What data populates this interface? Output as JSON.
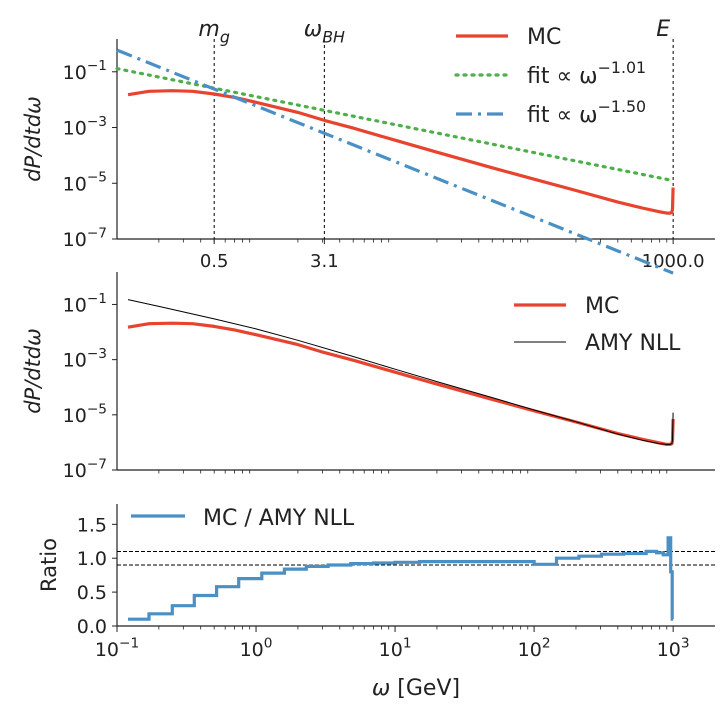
{
  "chart_data": [
    {
      "type": "line",
      "panel": "top",
      "ylabel": "dP/dtdω",
      "xscale": "log",
      "yscale": "log",
      "xlim": [
        0.1,
        2000
      ],
      "ylim": [
        1e-07,
        1.5
      ],
      "y_ticks": [
        {
          "value": 1e-07,
          "base": "10",
          "exp": "−7"
        },
        {
          "value": 1e-05,
          "base": "10",
          "exp": "−5"
        },
        {
          "value": 0.001,
          "base": "10",
          "exp": "−3"
        },
        {
          "value": 0.1,
          "base": "10",
          "exp": "−1"
        }
      ],
      "x_ticks": [
        {
          "value": 0.5,
          "label": "0.5"
        },
        {
          "value": 3.1,
          "label": "3.1"
        },
        {
          "value": 1000,
          "label": "1000.0"
        }
      ],
      "vlines": [
        {
          "x": 0.5,
          "label": "m",
          "sub": "g"
        },
        {
          "x": 3.1,
          "label": "ω",
          "sub": "BH"
        },
        {
          "x": 1000,
          "label": "E",
          "sub": ""
        }
      ],
      "series": [
        {
          "name": "MC",
          "color": "#e8432f",
          "style": "solid",
          "x": [
            0.12,
            0.17,
            0.25,
            0.35,
            0.5,
            0.7,
            1,
            2,
            3.1,
            5,
            10,
            20,
            50,
            100,
            200,
            400,
            600,
            800,
            900,
            950,
            980,
            990,
            1000
          ],
          "y": [
            0.015,
            0.02,
            0.021,
            0.02,
            0.016,
            0.012,
            0.008,
            0.0035,
            0.0018,
            0.00095,
            0.00035,
            0.00013,
            3.6e-05,
            1.4e-05,
            5.5e-06,
            2.1e-06,
            1.3e-06,
            9.5e-07,
            8.5e-07,
            8.5e-07,
            9e-07,
            1.2e-06,
            7e-06
          ]
        },
        {
          "name": "fit ∝ ω",
          "exp": "−1.01",
          "color": "#4daf4a",
          "style": "dotted",
          "x": [
            0.1,
            1000
          ],
          "y": [
            0.13,
            1.25e-05
          ]
        },
        {
          "name": "fit ∝ ω",
          "exp": "−1.50",
          "color": "#4a90c4",
          "style": "dashdot",
          "x": [
            0.1,
            1000
          ],
          "y": [
            0.6,
            6e-09
          ]
        }
      ],
      "legend": "top-right"
    },
    {
      "type": "line",
      "panel": "middle",
      "ylabel": "dP/dtdω",
      "xscale": "log",
      "yscale": "log",
      "xlim": [
        0.1,
        2000
      ],
      "ylim": [
        1e-07,
        1.5
      ],
      "y_ticks": [
        {
          "value": 1e-07,
          "base": "10",
          "exp": "−7"
        },
        {
          "value": 1e-05,
          "base": "10",
          "exp": "−5"
        },
        {
          "value": 0.001,
          "base": "10",
          "exp": "−3"
        },
        {
          "value": 0.1,
          "base": "10",
          "exp": "−1"
        }
      ],
      "series": [
        {
          "name": "MC",
          "color": "#e8432f",
          "style": "solid",
          "x": [
            0.12,
            0.17,
            0.25,
            0.35,
            0.5,
            0.7,
            1,
            2,
            3.1,
            5,
            10,
            20,
            50,
            100,
            200,
            400,
            600,
            800,
            900,
            950,
            980,
            990,
            1000
          ],
          "y": [
            0.015,
            0.02,
            0.021,
            0.02,
            0.016,
            0.012,
            0.008,
            0.0035,
            0.0018,
            0.00095,
            0.00035,
            0.00013,
            3.6e-05,
            1.4e-05,
            5.5e-06,
            2.1e-06,
            1.3e-06,
            9.5e-07,
            8.5e-07,
            8.5e-07,
            9e-07,
            1.2e-06,
            7e-06
          ]
        },
        {
          "name": "AMY NLL",
          "color": "#000000",
          "style": "thin",
          "x": [
            0.12,
            0.2,
            0.5,
            1,
            2,
            5,
            10,
            20,
            50,
            100,
            200,
            400,
            600,
            800,
            900,
            950,
            980,
            990,
            1000
          ],
          "y": [
            0.15,
            0.085,
            0.03,
            0.013,
            0.005,
            0.0013,
            0.00045,
            0.00016,
            4.2e-05,
            1.5e-05,
            5.6e-06,
            2e-06,
            1.2e-06,
            9e-07,
            8.5e-07,
            8.5e-07,
            9e-07,
            1.2e-06,
            1.2e-05
          ]
        }
      ],
      "legend": "top-right"
    },
    {
      "type": "line",
      "panel": "bottom",
      "ylabel": "Ratio",
      "xlabel": "ω [GeV]",
      "xscale": "log",
      "xlim": [
        0.1,
        2000
      ],
      "ylim": [
        0,
        1.8
      ],
      "y_ticks": [
        {
          "value": 0.0,
          "label": "0.0"
        },
        {
          "value": 0.5,
          "label": "0.5"
        },
        {
          "value": 1.0,
          "label": "1.0"
        },
        {
          "value": 1.5,
          "label": "1.5"
        }
      ],
      "x_ticks": [
        {
          "value": 0.1,
          "base": "10",
          "exp": "−1"
        },
        {
          "value": 1,
          "base": "10",
          "exp": "0"
        },
        {
          "value": 10,
          "base": "10",
          "exp": "1"
        },
        {
          "value": 100,
          "base": "10",
          "exp": "2"
        },
        {
          "value": 1000,
          "base": "10",
          "exp": "3"
        }
      ],
      "hlines": [
        0.9,
        1.1
      ],
      "series": [
        {
          "name": "MC / AMY NLL",
          "color": "#4a90c4",
          "style": "step",
          "edges": [
            0.12,
            0.17,
            0.25,
            0.36,
            0.52,
            0.75,
            1.1,
            1.6,
            2.3,
            3.3,
            4.8,
            7,
            10,
            15,
            22,
            32,
            47,
            68,
            100,
            145,
            210,
            305,
            440,
            640,
            760,
            850,
            920,
            960,
            985,
            1000
          ],
          "values": [
            0.1,
            0.18,
            0.3,
            0.45,
            0.58,
            0.7,
            0.78,
            0.84,
            0.88,
            0.9,
            0.92,
            0.93,
            0.94,
            0.95,
            0.95,
            0.95,
            0.95,
            0.95,
            0.91,
            1.0,
            1.03,
            1.06,
            1.07,
            1.1,
            1.08,
            1.05,
            1.3,
            0.8,
            0.1
          ]
        }
      ],
      "legend": "top-left"
    }
  ]
}
